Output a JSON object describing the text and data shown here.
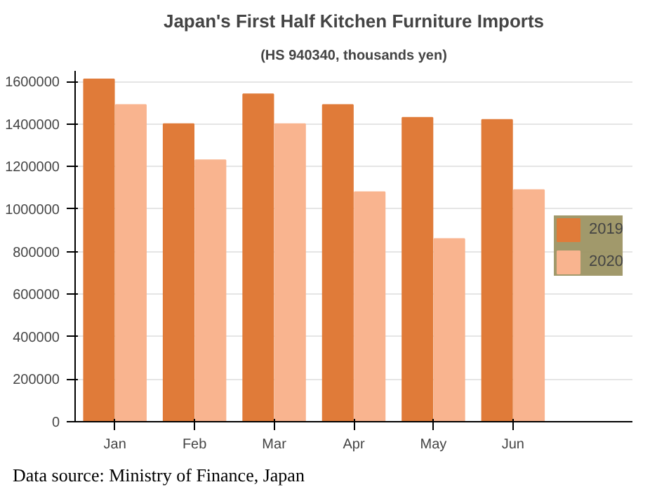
{
  "chart_data": {
    "type": "bar",
    "title": "Japan's First Half Kitchen Furniture Imports",
    "subtitle": "(HS 940340, thousands yen)",
    "annotations": [
      "Data source: Ministry of Finance, Japan"
    ],
    "categories": [
      "Jan",
      "Feb",
      "Mar",
      "Apr",
      "May",
      "Jun"
    ],
    "series": [
      {
        "name": "2019",
        "color": "#e07b39",
        "values": [
          1610000,
          1400000,
          1540000,
          1490000,
          1430000,
          1420000
        ]
      },
      {
        "name": "2020",
        "color": "#f9b48f",
        "values": [
          1490000,
          1230000,
          1400000,
          1080000,
          860000,
          1090000
        ]
      }
    ],
    "ylim": [
      0,
      1650000
    ],
    "yticks": [
      0,
      200000,
      400000,
      600000,
      800000,
      1000000,
      1200000,
      1400000,
      1600000
    ],
    "grid": "y",
    "legend": "right"
  }
}
